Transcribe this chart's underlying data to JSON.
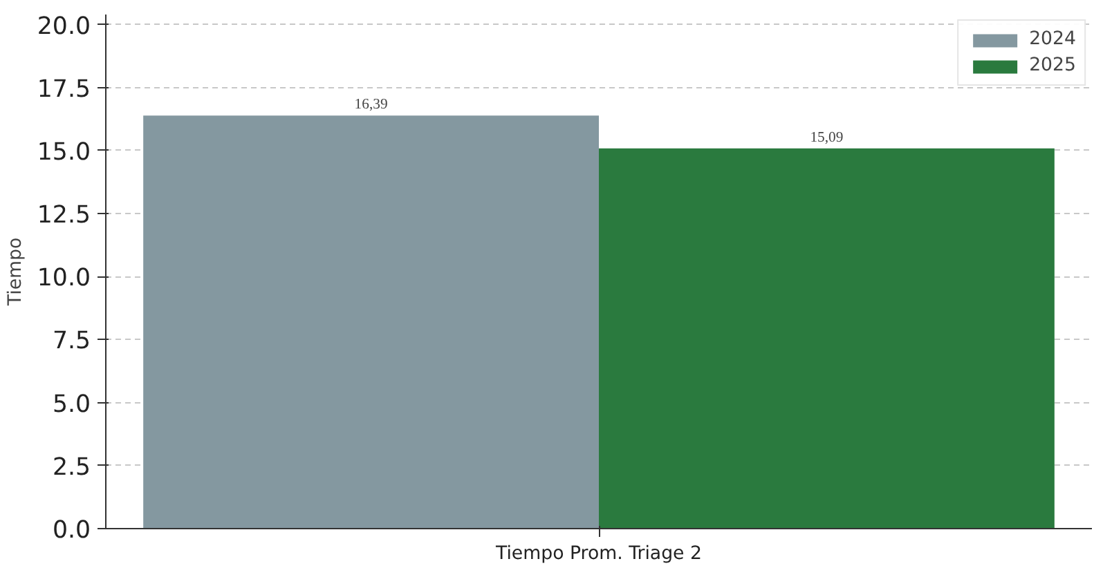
{
  "chart_data": {
    "type": "bar",
    "ylabel": "Tiempo",
    "categories": [
      "Tiempo Prom. Triage 2"
    ],
    "series": [
      {
        "name": "2024",
        "color": "#8498a0",
        "values": [
          16.39
        ],
        "value_labels": [
          "16,39"
        ]
      },
      {
        "name": "2025",
        "color": "#2a7a3e",
        "values": [
          15.09
        ],
        "value_labels": [
          "15,09"
        ]
      }
    ],
    "ylim": [
      0,
      20.4
    ],
    "yticks": [
      {
        "value": 0,
        "label": "0.0"
      },
      {
        "value": 2.5,
        "label": "2.5"
      },
      {
        "value": 5,
        "label": "5.0"
      },
      {
        "value": 7.5,
        "label": "7.5"
      },
      {
        "value": 10,
        "label": "10.0"
      },
      {
        "value": 12.5,
        "label": "12.5"
      },
      {
        "value": 15,
        "label": "15.0"
      },
      {
        "value": 17.5,
        "label": "17.5"
      },
      {
        "value": 20,
        "label": "20.0"
      }
    ],
    "grid": "y",
    "legend": "top right"
  }
}
